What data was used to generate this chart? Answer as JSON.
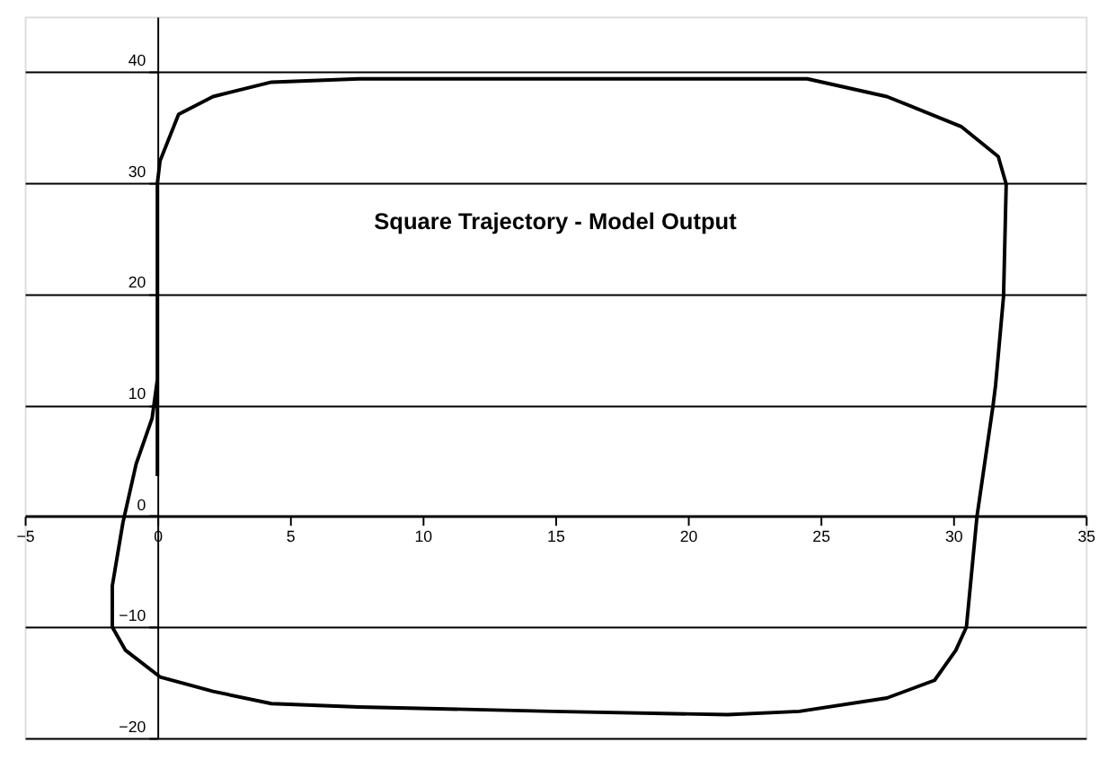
{
  "chart_data": {
    "type": "line",
    "title": "Square Trajectory - Model Output",
    "xlim": [
      -5,
      35
    ],
    "xticks": [
      -5,
      0,
      5,
      10,
      15,
      20,
      25,
      30,
      35
    ],
    "ylim": [
      -20,
      45
    ],
    "yticks": [
      -20,
      -10,
      0,
      10,
      20,
      30,
      40
    ],
    "grid": "y",
    "marker": "none",
    "line_style": "solid",
    "series": [
      {
        "color": "#000000",
        "x": [
          0,
          0,
          0,
          0.1,
          0.8,
          2.1,
          4.3,
          7.6,
          12,
          16,
          20,
          24.5,
          27.5,
          30.3,
          31.7,
          32.0,
          31.9,
          31.6,
          31.5,
          30.9,
          30.5,
          30.1,
          29.3,
          27.5,
          24.2,
          21.5,
          14.9,
          7.6,
          4.3,
          2.1,
          0.1,
          -1.2,
          -1.7,
          -1.7,
          -1.3,
          -0.8,
          -0.2,
          0.0
        ],
        "values": [
          3.6,
          20,
          30,
          32,
          36.2,
          37.8,
          39.1,
          39.4,
          39.4,
          39.4,
          39.4,
          39.4,
          37.8,
          35.1,
          32.4,
          29.9,
          19.8,
          11.8,
          9.9,
          0,
          -10,
          -12.1,
          -14.8,
          -16.4,
          -17.6,
          -17.9,
          -17.6,
          -17.2,
          -16.9,
          -15.8,
          -14.5,
          -12.1,
          -10,
          -6.3,
          -0.6,
          4.7,
          8.8,
          12.3
        ]
      }
    ]
  }
}
